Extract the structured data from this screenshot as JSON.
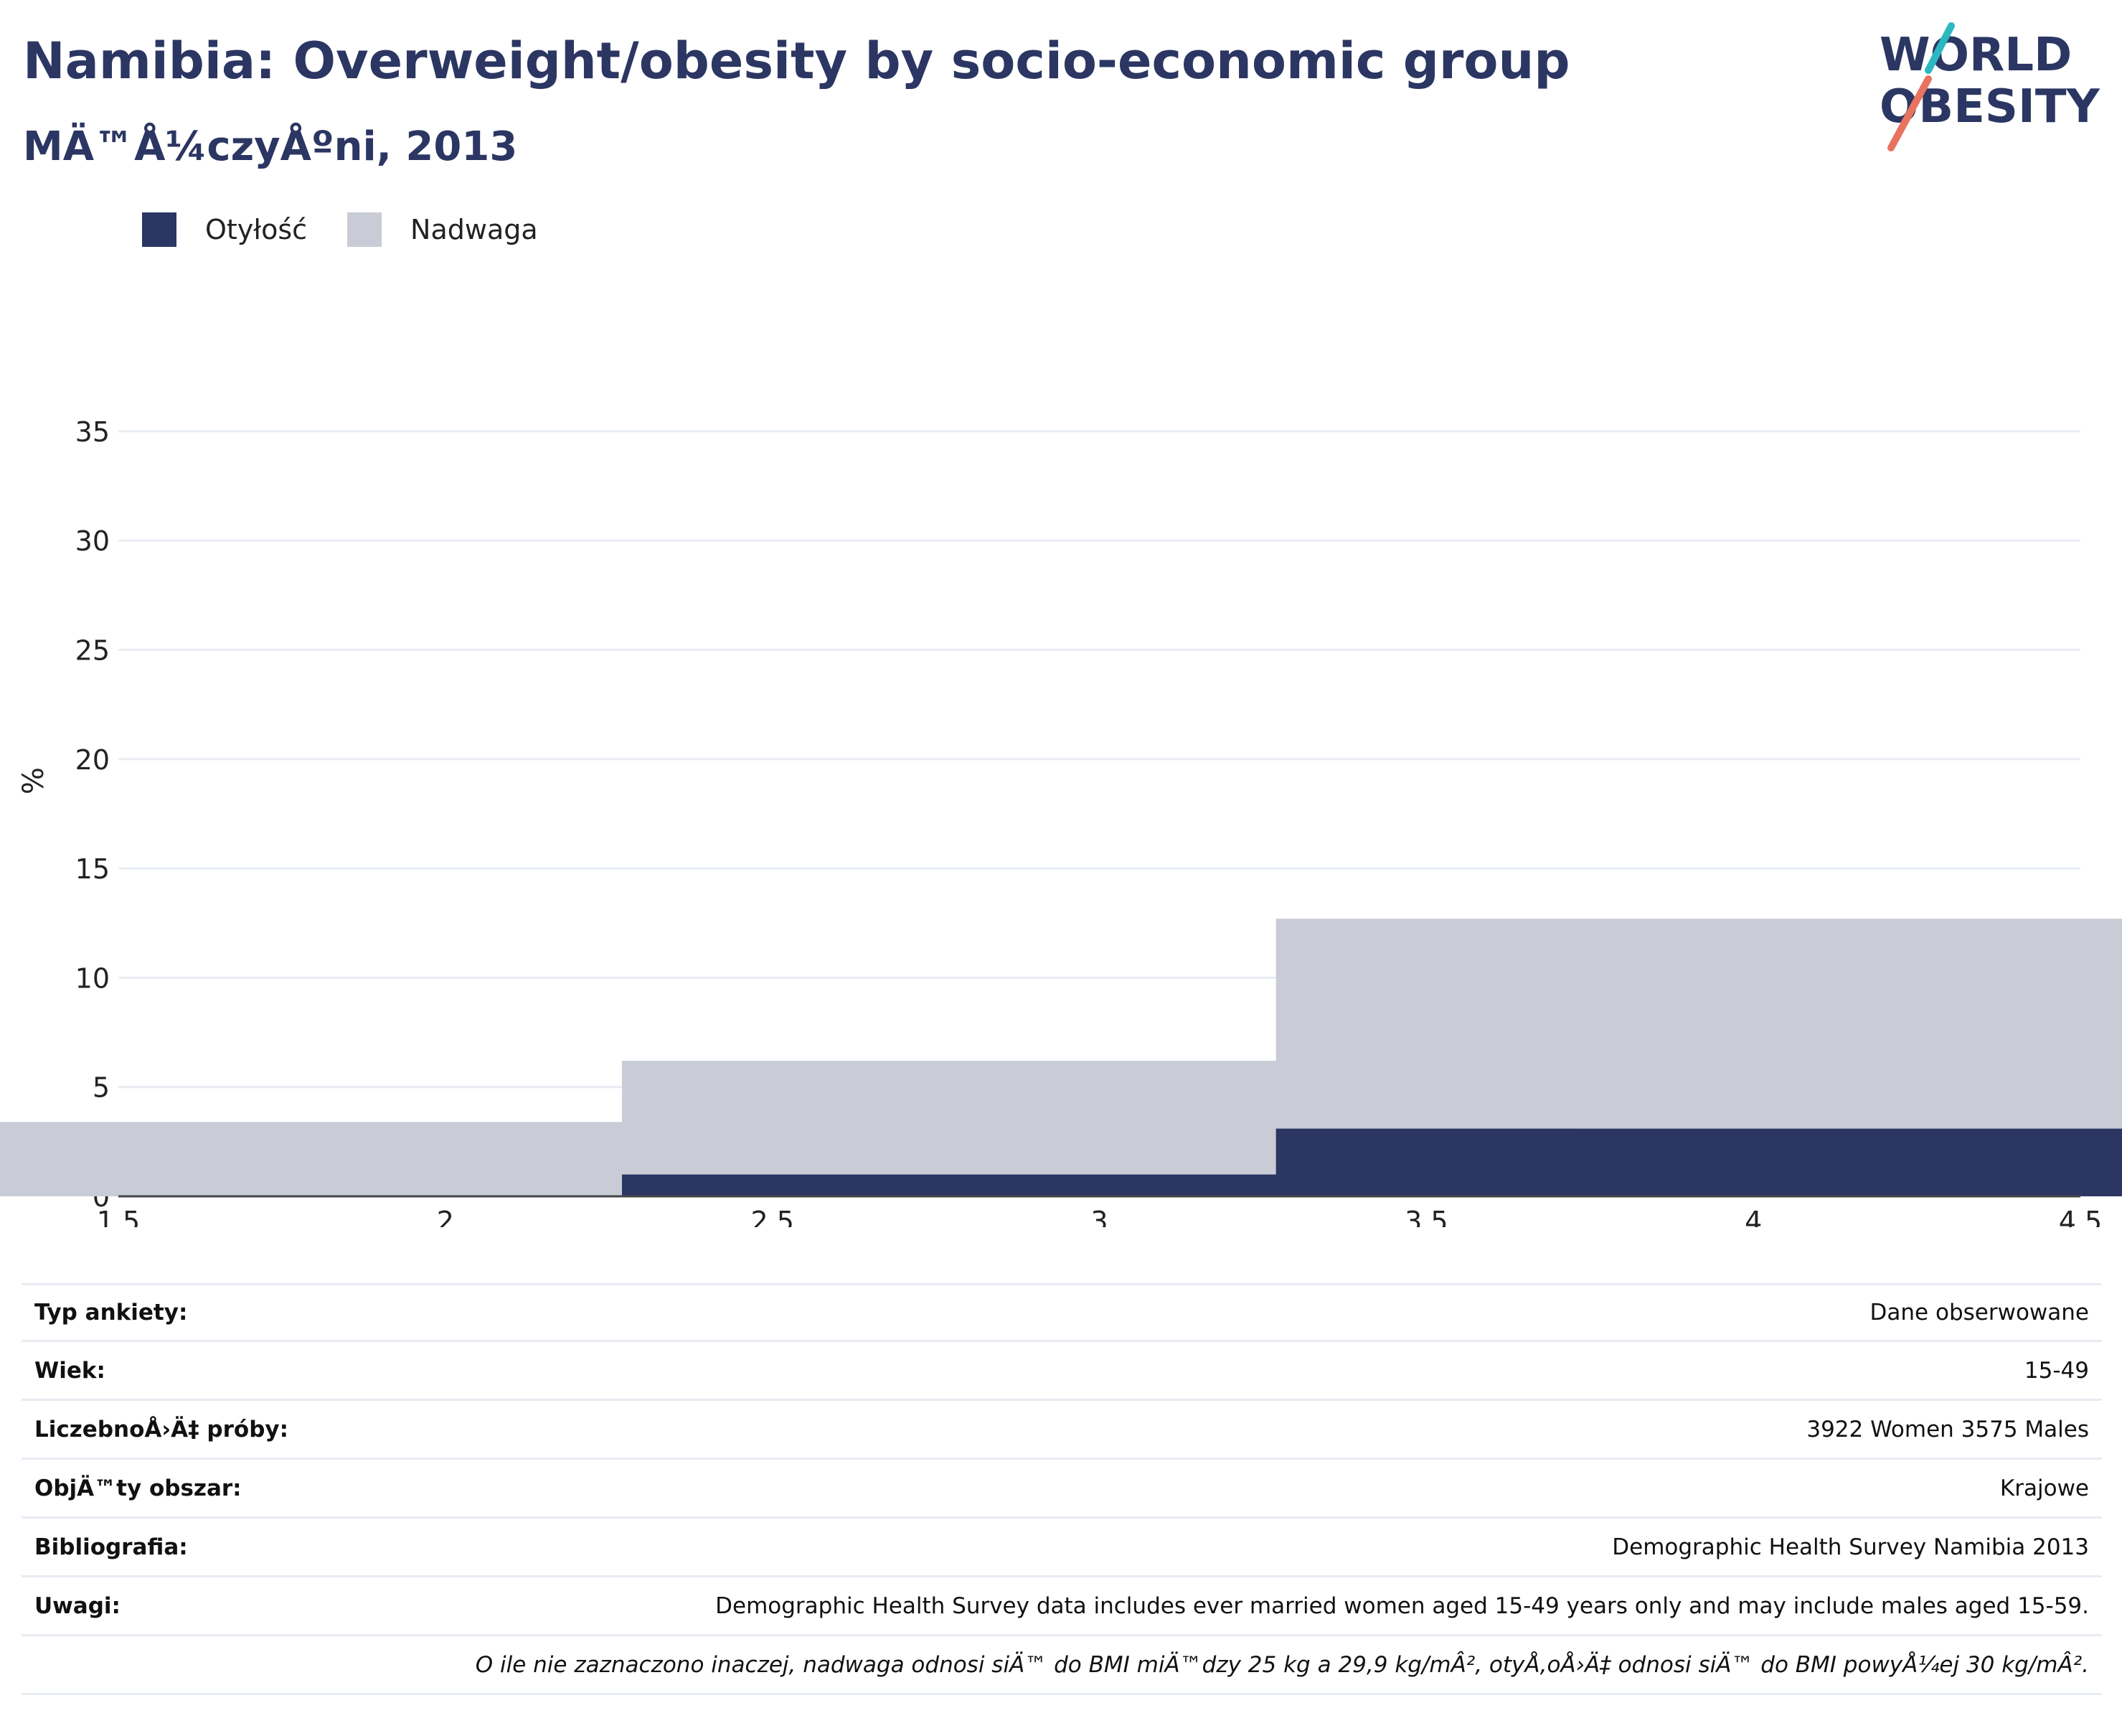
{
  "header": {
    "title": "Namibia: Overweight/obesity by socio-economic group",
    "subtitle": "MÄ™Å¼czyÅºni, 2013",
    "logo_text_line1": "WORLD",
    "logo_text_line2": "OBESITY"
  },
  "legend": {
    "items": [
      {
        "label": "Otyłość",
        "color": "#2b3663"
      },
      {
        "label": "Nadwaga",
        "color": "#c9cbd6"
      }
    ]
  },
  "chart_data": {
    "type": "bar",
    "barmode": "stacked",
    "x": [
      2,
      3,
      4
    ],
    "xlim": [
      1.5,
      4.5
    ],
    "xticks": [
      "1.5",
      "2",
      "2.5",
      "3",
      "3.5",
      "4",
      "4.5"
    ],
    "ylim": [
      0,
      37
    ],
    "yticks": [
      "0",
      "5",
      "10",
      "15",
      "20",
      "25",
      "30",
      "35"
    ],
    "ylabel": "%",
    "xlabel": "",
    "grid": true,
    "legend_position": "top-left",
    "series": [
      {
        "name": "Otyłość",
        "color": "#2b3663",
        "values": [
          0,
          1.0,
          3.1
        ]
      },
      {
        "name": "Nadwaga",
        "color": "#c9cbd6",
        "values": [
          3.4,
          5.2,
          9.6
        ]
      }
    ]
  },
  "info_table": [
    {
      "label": "Typ ankiety:",
      "value": "Dane obserwowane"
    },
    {
      "label": "Wiek:",
      "value": "15-49"
    },
    {
      "label": "LiczebnoÅ›Ä‡ próby:",
      "value": "3922 Women 3575 Males"
    },
    {
      "label": "ObjÄ™ty obszar:",
      "value": "Krajowe"
    },
    {
      "label": "Bibliografia:",
      "value": "Demographic Health Survey Namibia 2013"
    },
    {
      "label": "Uwagi:",
      "value": "Demographic Health Survey data includes ever married women aged 15-49 years only and may include males aged 15-59."
    }
  ],
  "footnote": "O ile nie zaznaczono inaczej, nadwaga odnosi siÄ™ do BMI miÄ™dzy 25 kg a 29,9 kg/mÂ², otyÅ‚oÅ›Ä‡ odnosi siÄ™ do BMI powyÅ¼ej 30 kg/mÂ²."
}
